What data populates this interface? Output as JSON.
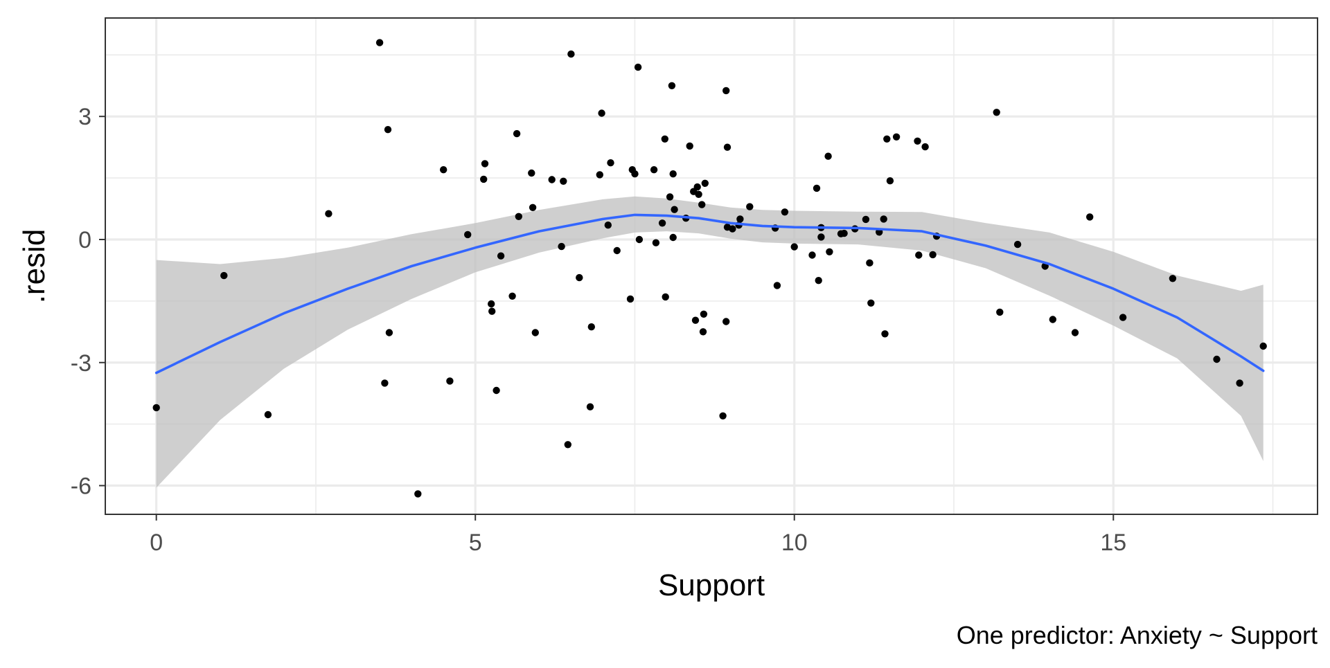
{
  "chart_data": {
    "type": "scatter",
    "title": "",
    "xlabel": "Support",
    "ylabel": ".resid",
    "caption": "One predictor: Anxiety ~ Support",
    "xlim": [
      -0.8,
      18.2
    ],
    "ylim": [
      -6.7,
      5.4
    ],
    "x_ticks": [
      0,
      5,
      10,
      15
    ],
    "x_minor_ticks": [
      2.5,
      7.5,
      12.5,
      17.5
    ],
    "y_ticks": [
      -6,
      -3,
      0,
      3
    ],
    "y_minor_ticks": [
      -4.5,
      -1.5,
      1.5,
      4.5
    ],
    "x_tick_labels": [
      "0",
      "5",
      "10",
      "15"
    ],
    "y_tick_labels": [
      "-6",
      "-3",
      "0",
      "3"
    ],
    "grid": true,
    "legend": "none",
    "colors": {
      "points": "#000000",
      "smooth_line": "#3366FF",
      "ribbon": "#bdbdbd",
      "grid": "#ebebeb",
      "panel_border": "#333333"
    },
    "points": [
      [
        0.0,
        -4.1
      ],
      [
        1.06,
        -0.88
      ],
      [
        1.75,
        -4.27
      ],
      [
        2.7,
        0.63
      ],
      [
        3.5,
        4.8
      ],
      [
        3.58,
        -3.5
      ],
      [
        3.63,
        2.68
      ],
      [
        3.65,
        -2.27
      ],
      [
        4.1,
        -6.2
      ],
      [
        4.5,
        1.7
      ],
      [
        4.6,
        -3.45
      ],
      [
        4.88,
        0.12
      ],
      [
        5.15,
        1.85
      ],
      [
        5.13,
        1.47
      ],
      [
        5.25,
        -1.57
      ],
      [
        5.26,
        -1.75
      ],
      [
        5.33,
        -3.68
      ],
      [
        5.4,
        -0.4
      ],
      [
        5.58,
        -1.38
      ],
      [
        5.65,
        2.58
      ],
      [
        5.68,
        0.56
      ],
      [
        5.88,
        1.62
      ],
      [
        5.9,
        0.78
      ],
      [
        5.94,
        -2.27
      ],
      [
        6.2,
        1.46
      ],
      [
        6.35,
        -0.17
      ],
      [
        6.38,
        1.42
      ],
      [
        6.45,
        -5.0
      ],
      [
        6.5,
        4.52
      ],
      [
        6.63,
        -0.93
      ],
      [
        6.8,
        -4.08
      ],
      [
        6.82,
        -2.13
      ],
      [
        6.95,
        1.58
      ],
      [
        6.98,
        3.08
      ],
      [
        7.08,
        0.35
      ],
      [
        7.12,
        1.87
      ],
      [
        7.22,
        -0.27
      ],
      [
        7.43,
        -1.45
      ],
      [
        7.46,
        1.7
      ],
      [
        7.5,
        1.6
      ],
      [
        7.55,
        4.2
      ],
      [
        7.57,
        0.0
      ],
      [
        7.83,
        -0.08
      ],
      [
        7.8,
        1.7
      ],
      [
        7.93,
        0.4
      ],
      [
        7.97,
        2.45
      ],
      [
        7.98,
        -1.4
      ],
      [
        8.05,
        1.04
      ],
      [
        8.08,
        3.75
      ],
      [
        8.1,
        0.05
      ],
      [
        8.1,
        1.6
      ],
      [
        8.12,
        0.73
      ],
      [
        8.3,
        0.52
      ],
      [
        8.36,
        2.28
      ],
      [
        8.42,
        1.17
      ],
      [
        8.45,
        -1.97
      ],
      [
        8.48,
        1.28
      ],
      [
        8.5,
        1.1
      ],
      [
        8.55,
        0.85
      ],
      [
        8.57,
        -2.25
      ],
      [
        8.58,
        -1.82
      ],
      [
        8.6,
        1.37
      ],
      [
        8.88,
        -4.3
      ],
      [
        8.93,
        -2.0
      ],
      [
        8.93,
        3.63
      ],
      [
        8.95,
        2.25
      ],
      [
        8.95,
        0.3
      ],
      [
        9.03,
        0.26
      ],
      [
        9.13,
        0.35
      ],
      [
        9.15,
        0.5
      ],
      [
        9.3,
        0.8
      ],
      [
        9.7,
        0.28
      ],
      [
        9.73,
        -1.12
      ],
      [
        9.85,
        0.67
      ],
      [
        10.0,
        -0.18
      ],
      [
        10.28,
        -0.38
      ],
      [
        10.35,
        1.25
      ],
      [
        10.38,
        -1.0
      ],
      [
        10.42,
        0.29
      ],
      [
        10.42,
        0.06
      ],
      [
        10.53,
        2.03
      ],
      [
        10.55,
        -0.3
      ],
      [
        10.73,
        0.14
      ],
      [
        10.78,
        0.15
      ],
      [
        10.95,
        0.26
      ],
      [
        11.12,
        0.49
      ],
      [
        11.18,
        -0.57
      ],
      [
        11.2,
        -1.55
      ],
      [
        11.33,
        0.18
      ],
      [
        11.4,
        0.5
      ],
      [
        11.42,
        -2.3
      ],
      [
        11.45,
        2.45
      ],
      [
        11.5,
        1.43
      ],
      [
        11.6,
        2.5
      ],
      [
        11.93,
        2.4
      ],
      [
        11.95,
        -0.38
      ],
      [
        12.05,
        2.26
      ],
      [
        12.17,
        -0.37
      ],
      [
        12.23,
        0.08
      ],
      [
        13.17,
        3.1
      ],
      [
        13.22,
        -1.77
      ],
      [
        13.5,
        -0.12
      ],
      [
        13.93,
        -0.65
      ],
      [
        14.05,
        -1.95
      ],
      [
        14.4,
        -2.27
      ],
      [
        14.63,
        0.55
      ],
      [
        15.15,
        -1.9
      ],
      [
        15.93,
        -0.95
      ],
      [
        16.62,
        -2.92
      ],
      [
        16.98,
        -3.5
      ],
      [
        17.35,
        -2.6
      ]
    ],
    "smooth": {
      "x": [
        0,
        1,
        2,
        3,
        4,
        5,
        6,
        7,
        7.5,
        8,
        8.5,
        9,
        9.5,
        10,
        11,
        12,
        13,
        14,
        15,
        16,
        17,
        17.35
      ],
      "y": [
        -3.25,
        -2.5,
        -1.8,
        -1.2,
        -0.65,
        -0.2,
        0.2,
        0.5,
        0.6,
        0.58,
        0.52,
        0.4,
        0.33,
        0.3,
        0.28,
        0.2,
        -0.15,
        -0.6,
        -1.2,
        -1.9,
        -2.85,
        -3.2
      ],
      "lower": [
        -6.05,
        -4.4,
        -3.15,
        -2.2,
        -1.45,
        -0.8,
        -0.32,
        0.03,
        0.17,
        0.2,
        0.15,
        0.02,
        -0.07,
        -0.1,
        -0.12,
        -0.27,
        -0.7,
        -1.37,
        -2.1,
        -2.9,
        -4.3,
        -5.4
      ],
      "upper": [
        -0.5,
        -0.6,
        -0.45,
        -0.2,
        0.13,
        0.4,
        0.72,
        0.98,
        1.05,
        1.0,
        0.9,
        0.78,
        0.72,
        0.7,
        0.68,
        0.67,
        0.4,
        0.17,
        -0.3,
        -0.88,
        -1.25,
        -1.1
      ]
    }
  }
}
